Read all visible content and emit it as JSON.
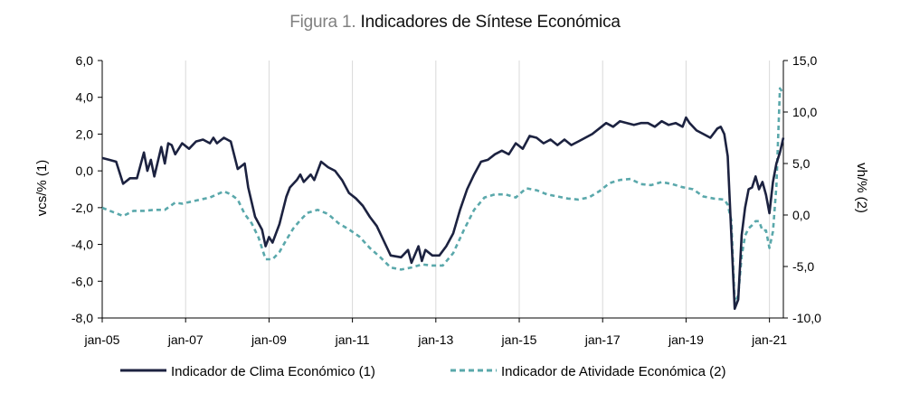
{
  "figure": {
    "title_prefix": "Figura 1.",
    "title_main": "Indicadores de Síntese Económica"
  },
  "chart_data": {
    "type": "line",
    "title": "Indicadores de Síntese Económica",
    "ylabel_left": "vcs/% (1)",
    "ylabel_right": "vh/% (2)",
    "ylim_left": [
      -8,
      6
    ],
    "ylim_right": [
      -10,
      15
    ],
    "yticks_left": [
      "6,0",
      "4,0",
      "2,0",
      "0,0",
      "-2,0",
      "-4,0",
      "-6,0",
      "-8,0"
    ],
    "yticks_right": [
      "15,0",
      "10,0",
      "5,0",
      "0,0",
      "-5,0",
      "-10,0"
    ],
    "xticks": [
      "jan-05",
      "jan-07",
      "jan-09",
      "jan-11",
      "jan-13",
      "jan-15",
      "jan-17",
      "jan-19",
      "jan-21"
    ],
    "x_range": [
      "2005-01",
      "2021-05"
    ],
    "grid": "vertical",
    "legend_position": "bottom",
    "colors": {
      "clima": "#1c2240",
      "atividade": "#5aa8ab",
      "grid": "#d9d9d9",
      "axis": "#000000"
    },
    "series": [
      {
        "name": "Indicador de Clima Económico (1)",
        "axis": "left",
        "style": "solid",
        "points": [
          [
            "2005-01",
            0.7
          ],
          [
            "2005-03",
            0.6
          ],
          [
            "2005-05",
            0.5
          ],
          [
            "2005-07",
            -0.7
          ],
          [
            "2005-09",
            -0.4
          ],
          [
            "2005-11",
            -0.4
          ],
          [
            "2006-01",
            1.0
          ],
          [
            "2006-02",
            0.0
          ],
          [
            "2006-03",
            0.6
          ],
          [
            "2006-04",
            -0.3
          ],
          [
            "2006-06",
            1.3
          ],
          [
            "2006-07",
            0.4
          ],
          [
            "2006-08",
            1.5
          ],
          [
            "2006-09",
            1.4
          ],
          [
            "2006-10",
            0.9
          ],
          [
            "2006-12",
            1.5
          ],
          [
            "2007-02",
            1.2
          ],
          [
            "2007-04",
            1.6
          ],
          [
            "2007-06",
            1.7
          ],
          [
            "2007-08",
            1.5
          ],
          [
            "2007-09",
            1.8
          ],
          [
            "2007-10",
            1.5
          ],
          [
            "2007-12",
            1.8
          ],
          [
            "2008-02",
            1.6
          ],
          [
            "2008-04",
            0.1
          ],
          [
            "2008-06",
            0.4
          ],
          [
            "2008-07",
            -0.9
          ],
          [
            "2008-09",
            -2.5
          ],
          [
            "2008-11",
            -3.2
          ],
          [
            "2008-12",
            -4.1
          ],
          [
            "2009-01",
            -3.6
          ],
          [
            "2009-02",
            -3.9
          ],
          [
            "2009-04",
            -2.9
          ],
          [
            "2009-06",
            -1.4
          ],
          [
            "2009-07",
            -0.9
          ],
          [
            "2009-09",
            -0.5
          ],
          [
            "2009-10",
            -0.2
          ],
          [
            "2009-11",
            -0.6
          ],
          [
            "2010-01",
            -0.2
          ],
          [
            "2010-02",
            -0.5
          ],
          [
            "2010-04",
            0.5
          ],
          [
            "2010-06",
            0.2
          ],
          [
            "2010-08",
            0.0
          ],
          [
            "2010-10",
            -0.5
          ],
          [
            "2010-12",
            -1.2
          ],
          [
            "2011-02",
            -1.5
          ],
          [
            "2011-04",
            -1.9
          ],
          [
            "2011-06",
            -2.5
          ],
          [
            "2011-08",
            -3.0
          ],
          [
            "2011-10",
            -3.8
          ],
          [
            "2011-12",
            -4.6
          ],
          [
            "2012-03",
            -4.7
          ],
          [
            "2012-05",
            -4.3
          ],
          [
            "2012-06",
            -5.0
          ],
          [
            "2012-08",
            -4.1
          ],
          [
            "2012-09",
            -4.9
          ],
          [
            "2012-10",
            -4.3
          ],
          [
            "2012-12",
            -4.6
          ],
          [
            "2013-02",
            -4.6
          ],
          [
            "2013-04",
            -4.1
          ],
          [
            "2013-06",
            -3.4
          ],
          [
            "2013-08",
            -2.1
          ],
          [
            "2013-10",
            -1.0
          ],
          [
            "2013-12",
            -0.2
          ],
          [
            "2014-02",
            0.5
          ],
          [
            "2014-04",
            0.6
          ],
          [
            "2014-06",
            0.9
          ],
          [
            "2014-08",
            1.1
          ],
          [
            "2014-10",
            0.9
          ],
          [
            "2014-12",
            1.5
          ],
          [
            "2015-02",
            1.2
          ],
          [
            "2015-04",
            1.9
          ],
          [
            "2015-06",
            1.8
          ],
          [
            "2015-08",
            1.5
          ],
          [
            "2015-10",
            1.7
          ],
          [
            "2015-12",
            1.4
          ],
          [
            "2016-02",
            1.7
          ],
          [
            "2016-04",
            1.4
          ],
          [
            "2016-06",
            1.6
          ],
          [
            "2016-08",
            1.8
          ],
          [
            "2016-10",
            2.0
          ],
          [
            "2016-12",
            2.3
          ],
          [
            "2017-02",
            2.6
          ],
          [
            "2017-04",
            2.4
          ],
          [
            "2017-06",
            2.7
          ],
          [
            "2017-08",
            2.6
          ],
          [
            "2017-10",
            2.5
          ],
          [
            "2017-12",
            2.6
          ],
          [
            "2018-02",
            2.6
          ],
          [
            "2018-04",
            2.4
          ],
          [
            "2018-06",
            2.7
          ],
          [
            "2018-08",
            2.5
          ],
          [
            "2018-10",
            2.6
          ],
          [
            "2018-12",
            2.4
          ],
          [
            "2019-01",
            2.9
          ],
          [
            "2019-02",
            2.6
          ],
          [
            "2019-04",
            2.2
          ],
          [
            "2019-06",
            2.0
          ],
          [
            "2019-08",
            1.8
          ],
          [
            "2019-10",
            2.3
          ],
          [
            "2019-11",
            2.4
          ],
          [
            "2019-12",
            2.0
          ],
          [
            "2020-01",
            0.8
          ],
          [
            "2020-03",
            -7.5
          ],
          [
            "2020-04",
            -7.0
          ],
          [
            "2020-05",
            -3.5
          ],
          [
            "2020-06",
            -2.0
          ],
          [
            "2020-07",
            -1.0
          ],
          [
            "2020-08",
            -0.9
          ],
          [
            "2020-09",
            -0.3
          ],
          [
            "2020-10",
            -1.0
          ],
          [
            "2020-11",
            -0.6
          ],
          [
            "2020-12",
            -1.3
          ],
          [
            "2021-01",
            -2.3
          ],
          [
            "2021-02",
            -0.6
          ],
          [
            "2021-03",
            0.4
          ],
          [
            "2021-04",
            1.0
          ],
          [
            "2021-05",
            1.8
          ]
        ]
      },
      {
        "name": "Indicador de Atividade Económica (2)",
        "axis": "right",
        "style": "dashed",
        "points": [
          [
            "2005-01",
            0.7
          ],
          [
            "2005-04",
            0.3
          ],
          [
            "2005-07",
            -0.1
          ],
          [
            "2005-10",
            0.4
          ],
          [
            "2006-01",
            0.4
          ],
          [
            "2006-04",
            0.5
          ],
          [
            "2006-07",
            0.5
          ],
          [
            "2006-10",
            1.2
          ],
          [
            "2006-12",
            1.1
          ],
          [
            "2007-04",
            1.4
          ],
          [
            "2007-08",
            1.7
          ],
          [
            "2007-10",
            2.0
          ],
          [
            "2007-12",
            2.3
          ],
          [
            "2008-02",
            2.0
          ],
          [
            "2008-04",
            1.5
          ],
          [
            "2008-06",
            0.1
          ],
          [
            "2008-08",
            -0.8
          ],
          [
            "2008-10",
            -2.2
          ],
          [
            "2008-12",
            -4.3
          ],
          [
            "2009-02",
            -4.3
          ],
          [
            "2009-04",
            -3.6
          ],
          [
            "2009-06",
            -2.4
          ],
          [
            "2009-08",
            -1.3
          ],
          [
            "2009-10",
            -0.5
          ],
          [
            "2009-12",
            0.2
          ],
          [
            "2010-03",
            0.5
          ],
          [
            "2010-06",
            0.1
          ],
          [
            "2010-09",
            -0.8
          ],
          [
            "2010-12",
            -1.4
          ],
          [
            "2011-03",
            -2.1
          ],
          [
            "2011-06",
            -3.2
          ],
          [
            "2011-09",
            -4.1
          ],
          [
            "2011-12",
            -5.1
          ],
          [
            "2012-03",
            -5.3
          ],
          [
            "2012-06",
            -5.1
          ],
          [
            "2012-09",
            -4.8
          ],
          [
            "2012-12",
            -4.9
          ],
          [
            "2013-03",
            -4.9
          ],
          [
            "2013-06",
            -3.7
          ],
          [
            "2013-09",
            -1.5
          ],
          [
            "2013-12",
            0.5
          ],
          [
            "2014-03",
            1.7
          ],
          [
            "2014-06",
            2.0
          ],
          [
            "2014-09",
            2.0
          ],
          [
            "2014-12",
            1.7
          ],
          [
            "2015-03",
            2.6
          ],
          [
            "2015-06",
            2.4
          ],
          [
            "2015-09",
            2.0
          ],
          [
            "2015-12",
            1.8
          ],
          [
            "2016-03",
            1.6
          ],
          [
            "2016-06",
            1.5
          ],
          [
            "2016-09",
            1.7
          ],
          [
            "2016-12",
            2.3
          ],
          [
            "2017-03",
            3.1
          ],
          [
            "2017-06",
            3.4
          ],
          [
            "2017-09",
            3.5
          ],
          [
            "2017-12",
            3.0
          ],
          [
            "2018-03",
            2.9
          ],
          [
            "2018-06",
            3.2
          ],
          [
            "2018-09",
            3.0
          ],
          [
            "2018-12",
            2.7
          ],
          [
            "2019-03",
            2.5
          ],
          [
            "2019-06",
            1.8
          ],
          [
            "2019-09",
            1.6
          ],
          [
            "2019-12",
            1.5
          ],
          [
            "2020-01",
            1.0
          ],
          [
            "2020-02",
            -0.5
          ],
          [
            "2020-03",
            -8.5
          ],
          [
            "2020-04",
            -7.8
          ],
          [
            "2020-05",
            -4.0
          ],
          [
            "2020-06",
            -2.0
          ],
          [
            "2020-07",
            -1.3
          ],
          [
            "2020-08",
            -1.0
          ],
          [
            "2020-09",
            -0.6
          ],
          [
            "2020-10",
            -0.6
          ],
          [
            "2020-11",
            -1.5
          ],
          [
            "2020-12",
            -1.5
          ],
          [
            "2021-01",
            -3.2
          ],
          [
            "2021-02",
            -1.6
          ],
          [
            "2021-03",
            2.8
          ],
          [
            "2021-04",
            12.3
          ],
          [
            "2021-05",
            11.8
          ]
        ]
      }
    ]
  }
}
